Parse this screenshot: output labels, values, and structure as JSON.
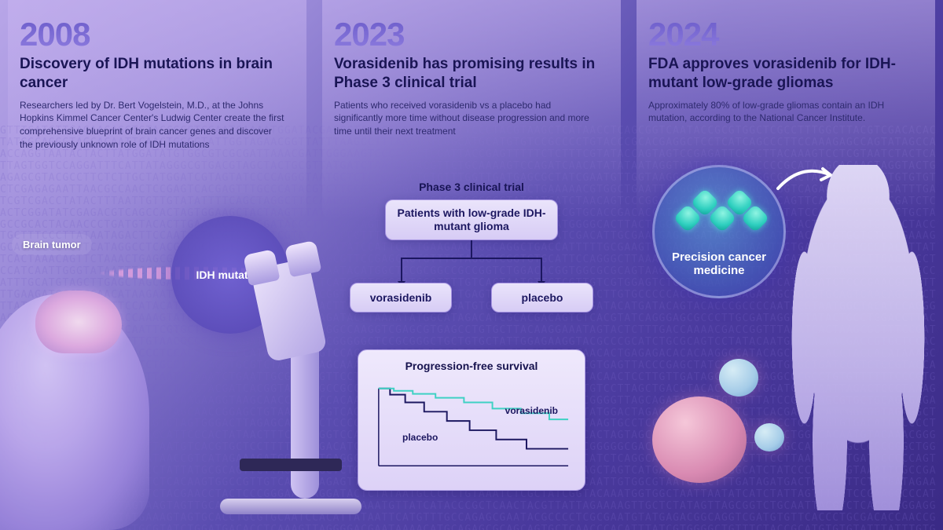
{
  "background": {
    "gradient_colors": [
      "#b8a6e8",
      "#9b8bd9",
      "#5a4db0",
      "#4a3a9e",
      "#3a2a85"
    ],
    "dna_text_color": "rgba(120,100,200,0.25)",
    "dna_letters": "ATCG"
  },
  "panels": [
    {
      "year": "2008",
      "headline": "Discovery of IDH mutations in brain cancer",
      "body": "Researchers led by Dr. Bert Vogelstein, M.D., at the Johns Hopkins Kimmel Cancer Center's Ludwig Center create the first comprehensive blueprint of brain cancer genes and discover the previously unknown role of IDH mutations",
      "labels": {
        "brain_tumor": "Brain tumor",
        "idh_mutation": "IDH mutation"
      },
      "colors": {
        "year": "#6a5bc9",
        "headline": "#1a1555",
        "body": "#2e2a6e",
        "idh_circle": "#5a4db0"
      }
    },
    {
      "year": "2023",
      "headline": "Vorasidenib has promising results in Phase 3 clinical trial",
      "body": "Patients who received vorasidenib vs a placebo had significantly more time without disease progression and more time until their next treatment",
      "diagram": {
        "title": "Phase 3 clinical trial",
        "root_box": "Patients with low-grade IDH-mutant glioma",
        "arm_left": "vorasidenib",
        "arm_right": "placebo",
        "box_bg": "#eae4fb",
        "box_border": "#a795e2",
        "connector_color": "#1c1760"
      },
      "chart": {
        "title": "Progression-free survival",
        "type": "kaplan-meier-step",
        "series": [
          {
            "name": "vorasidenib",
            "color": "#3fd1c4",
            "points": [
              [
                0,
                1.0
              ],
              [
                8,
                1.0
              ],
              [
                8,
                0.97
              ],
              [
                18,
                0.97
              ],
              [
                18,
                0.93
              ],
              [
                30,
                0.93
              ],
              [
                30,
                0.88
              ],
              [
                45,
                0.88
              ],
              [
                45,
                0.82
              ],
              [
                60,
                0.82
              ],
              [
                60,
                0.74
              ],
              [
                75,
                0.74
              ],
              [
                75,
                0.68
              ],
              [
                90,
                0.68
              ],
              [
                90,
                0.6
              ],
              [
                100,
                0.6
              ]
            ]
          },
          {
            "name": "placebo",
            "color": "#1c1760",
            "points": [
              [
                0,
                1.0
              ],
              [
                6,
                1.0
              ],
              [
                6,
                0.92
              ],
              [
                14,
                0.92
              ],
              [
                14,
                0.82
              ],
              [
                24,
                0.82
              ],
              [
                24,
                0.7
              ],
              [
                36,
                0.7
              ],
              [
                36,
                0.58
              ],
              [
                48,
                0.58
              ],
              [
                48,
                0.46
              ],
              [
                62,
                0.46
              ],
              [
                62,
                0.34
              ],
              [
                78,
                0.34
              ],
              [
                78,
                0.22
              ],
              [
                100,
                0.22
              ]
            ]
          }
        ],
        "xlim": [
          0,
          100
        ],
        "ylim": [
          0,
          1
        ],
        "label_vorasidenib": "vorasidenib",
        "label_placebo": "placebo",
        "card_bg": "#efe9fc",
        "card_border": "#b0a0e6"
      }
    },
    {
      "year": "2024",
      "headline": "FDA approves vorasidenib for IDH-mutant low-grade gliomas",
      "body": "Approximately 80% of low-grade gliomas contain an IDH mutation, according to the National Cancer Institute.",
      "labels": {
        "precision_medicine": "Precision cancer medicine"
      },
      "colors": {
        "precision_circle": "#4445aa",
        "molecule": "#2ecfbf",
        "figure": "#c8bbef"
      }
    }
  ]
}
